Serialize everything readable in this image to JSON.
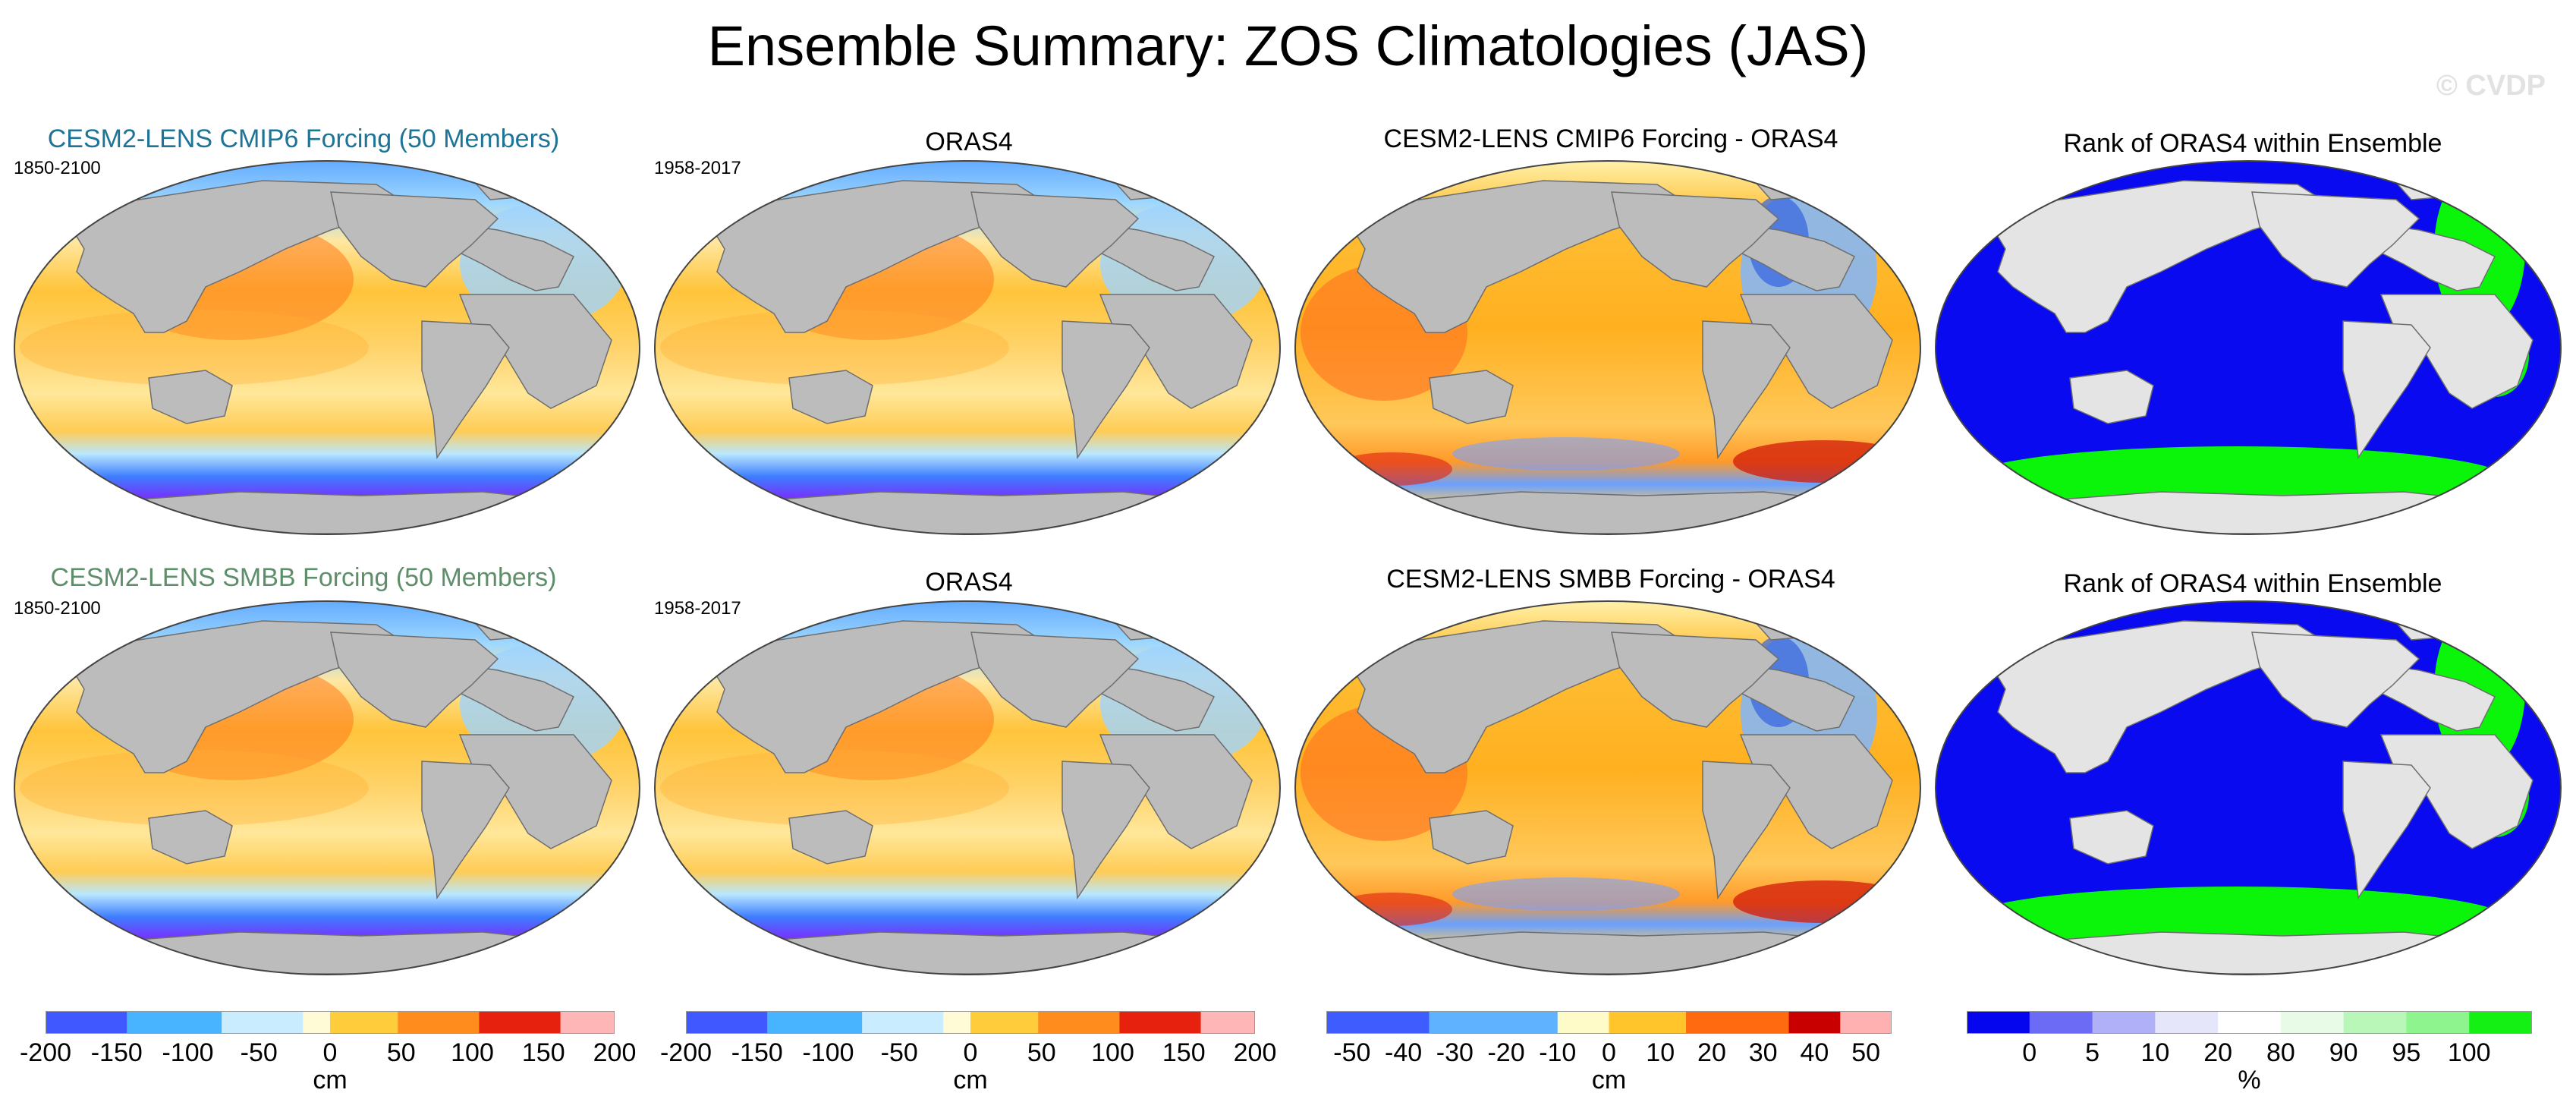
{
  "title": "Ensemble Summary: ZOS Climatologies (JAS)",
  "watermark": "© CVDP",
  "rows": [
    {
      "ensemble_title": "CESM2-LENS CMIP6 Forcing (50 Members)",
      "ensemble_title_color": "#1d7497",
      "ensemble_period": "1850-2100",
      "obs_title": "ORAS4",
      "obs_period": "1958-2017",
      "diff_title": "CESM2-LENS CMIP6 Forcing - ORAS4",
      "rank_title": "Rank of ORAS4 within Ensemble"
    },
    {
      "ensemble_title": "CESM2-LENS SMBB Forcing (50 Members)",
      "ensemble_title_color": "#5e8e6a",
      "ensemble_period": "1850-2100",
      "obs_title": "ORAS4",
      "obs_period": "1958-2017",
      "diff_title": "CESM2-LENS SMBB Forcing - ORAS4",
      "rank_title": "Rank of ORAS4 within Ensemble"
    }
  ],
  "colorbars": {
    "climatology": {
      "ticks": [
        "-200",
        "-150",
        "-100",
        "-50",
        "0",
        "50",
        "100",
        "150",
        "200"
      ],
      "unit": "cm"
    },
    "difference": {
      "ticks": [
        "-50",
        "-40",
        "-30",
        "-20",
        "-10",
        "0",
        "10",
        "20",
        "30",
        "40",
        "50"
      ],
      "unit": "cm"
    },
    "rank": {
      "ticks": [
        "0",
        "5",
        "10",
        "20",
        "80",
        "90",
        "95",
        "100"
      ],
      "unit": "%"
    }
  },
  "colors": {
    "land": "#bcbcbc",
    "land_rank": "#e4e4e4",
    "rank_low": "#0a0af0",
    "rank_high": "#0af50a"
  }
}
